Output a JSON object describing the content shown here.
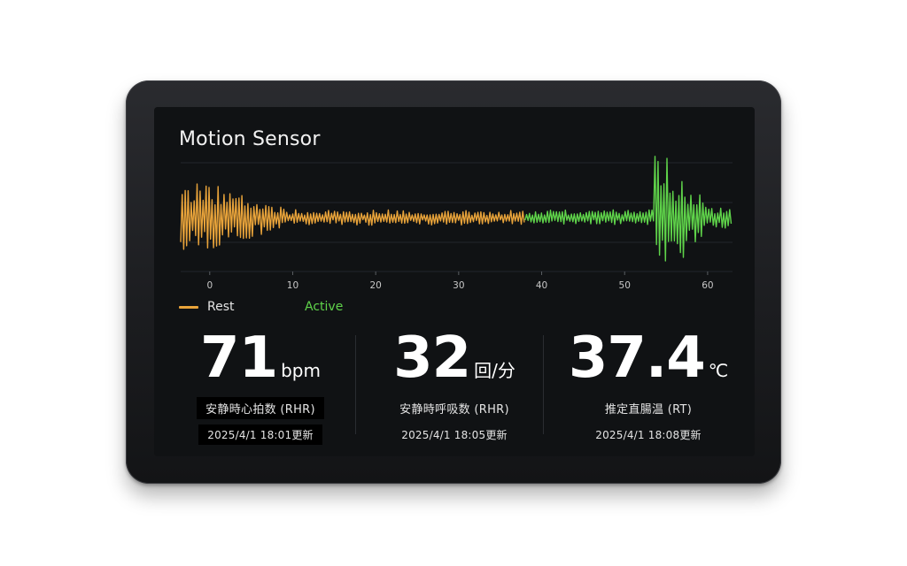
{
  "panel": {
    "title": "Motion Sensor"
  },
  "colors": {
    "rest": "#e8a33a",
    "active": "#5fd34a",
    "background": "#101214"
  },
  "chart_data": {
    "type": "line",
    "title": "Motion Sensor",
    "xlim": [
      -3.5,
      63
    ],
    "x_ticks": [
      "0",
      "10",
      "20",
      "30",
      "40",
      "50",
      "60"
    ],
    "grid": true,
    "legend_position": "bottom-left",
    "series": [
      {
        "name": "Rest",
        "color": "#e8a33a",
        "x_range": [
          -3.5,
          38
        ],
        "amplitude_profile": "high near start, decaying to low baseline by x≈10"
      },
      {
        "name": "Active",
        "color": "#5fd34a",
        "x_range": [
          38,
          63
        ],
        "amplitude_profile": "low baseline until x≈54, then large spikes"
      }
    ]
  },
  "legend": {
    "rest_label": "Rest",
    "active_label": "Active"
  },
  "metrics": [
    {
      "value": "71",
      "unit": "bpm",
      "label": "安静時心拍数 (RHR)",
      "updated": "2025/4/1 18:01更新"
    },
    {
      "value": "32",
      "unit": "回/分",
      "label": "安静時呼吸数 (RHR)",
      "updated": "2025/4/1 18:05更新"
    },
    {
      "value": "37.4",
      "unit": "℃",
      "label": "推定直腸温 (RT)",
      "updated": "2025/4/1 18:08更新"
    }
  ]
}
